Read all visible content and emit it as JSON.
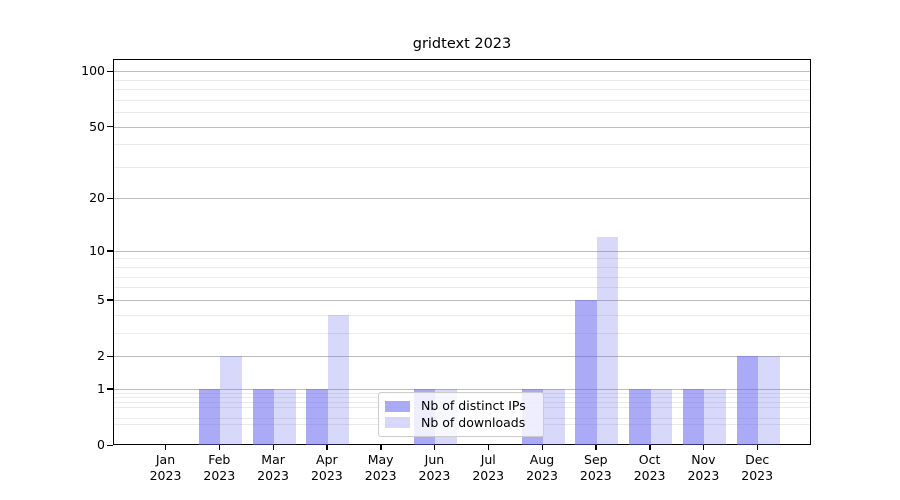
{
  "chart_data": {
    "type": "bar",
    "title": "gridtext 2023",
    "categories": [
      "Jan 2023",
      "Feb 2023",
      "Mar 2023",
      "Apr 2023",
      "May 2023",
      "Jun 2023",
      "Jul 2023",
      "Aug 2023",
      "Sep 2023",
      "Oct 2023",
      "Nov 2023",
      "Dec 2023"
    ],
    "months": [
      "Jan",
      "Feb",
      "Mar",
      "Apr",
      "May",
      "Jun",
      "Jul",
      "Aug",
      "Sep",
      "Oct",
      "Nov",
      "Dec"
    ],
    "year": "2023",
    "series": [
      {
        "name": "Nb of distinct IPs",
        "color": "rgba(100,100,240,0.55)",
        "values": [
          0,
          1,
          1,
          1,
          0,
          1,
          0,
          1,
          5,
          1,
          1,
          2
        ]
      },
      {
        "name": "Nb of downloads",
        "color": "rgba(100,100,240,0.25)",
        "values": [
          0,
          2,
          1,
          4,
          0,
          1,
          0,
          1,
          12,
          1,
          1,
          2
        ]
      }
    ],
    "yscale": "log1p",
    "y_major_ticks": [
      0,
      1,
      2,
      5,
      10,
      20,
      50,
      100
    ],
    "y_minor_gridlines": [
      0.3,
      0.4,
      0.6,
      0.7,
      0.8,
      0.9,
      3,
      4,
      6,
      7,
      8,
      9,
      30,
      40,
      60,
      70,
      80,
      90
    ],
    "ylim": [
      0,
      116
    ],
    "xlabel": "",
    "ylabel": "",
    "grid": "horizontal",
    "legend_position": "lower center",
    "colors": {
      "grid_major": "#bdbdbd",
      "grid_minor": "#eaeaea",
      "spine": "#000000",
      "legend_border": "#cccccc"
    }
  }
}
